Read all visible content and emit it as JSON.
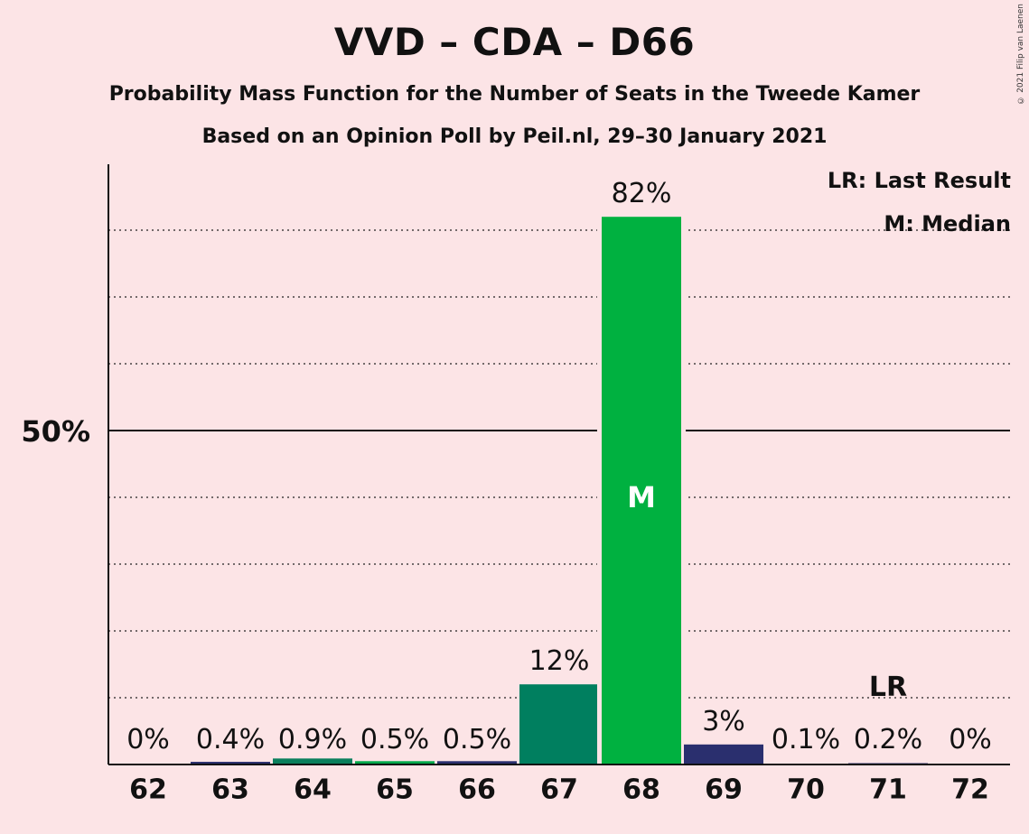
{
  "header": {
    "title": "VVD – CDA – D66",
    "subtitle1": "Probability Mass Function for the Number of Seats in the Tweede Kamer",
    "subtitle2": "Based on an Opinion Poll by Peil.nl, 29–30 January 2021",
    "copyright": "© 2021 Filip van Laenen"
  },
  "legend": {
    "lr": "LR: Last Result",
    "m": "M: Median"
  },
  "chart_data": {
    "type": "bar",
    "categories": [
      "62",
      "63",
      "64",
      "65",
      "66",
      "67",
      "68",
      "69",
      "70",
      "71",
      "72"
    ],
    "values": [
      0,
      0.4,
      0.9,
      0.5,
      0.5,
      12,
      82,
      3,
      0.1,
      0.2,
      0
    ],
    "value_labels": [
      "0%",
      "0.4%",
      "0.9%",
      "0.5%",
      "0.5%",
      "12%",
      "82%",
      "3%",
      "0.1%",
      "0.2%",
      "0%"
    ],
    "colors": [
      "#0c2a6e",
      "#2a2f6e",
      "#0a7f5c",
      "#00a84a",
      "#2a2f6e",
      "#007f5f",
      "#00b140",
      "#2a2f6e",
      "#2a2f6e",
      "#2a2f6e",
      "#2a2f6e"
    ],
    "ylim": [
      0,
      90
    ],
    "y_major_tick": {
      "value": 50,
      "label": "50%"
    },
    "y_gridlines": [
      10,
      20,
      30,
      40,
      60,
      70,
      80
    ],
    "median_index": 6,
    "median_label": "M",
    "last_result_index": 9,
    "last_result_label": "LR",
    "grid": true,
    "legend_placement": "top-right"
  }
}
